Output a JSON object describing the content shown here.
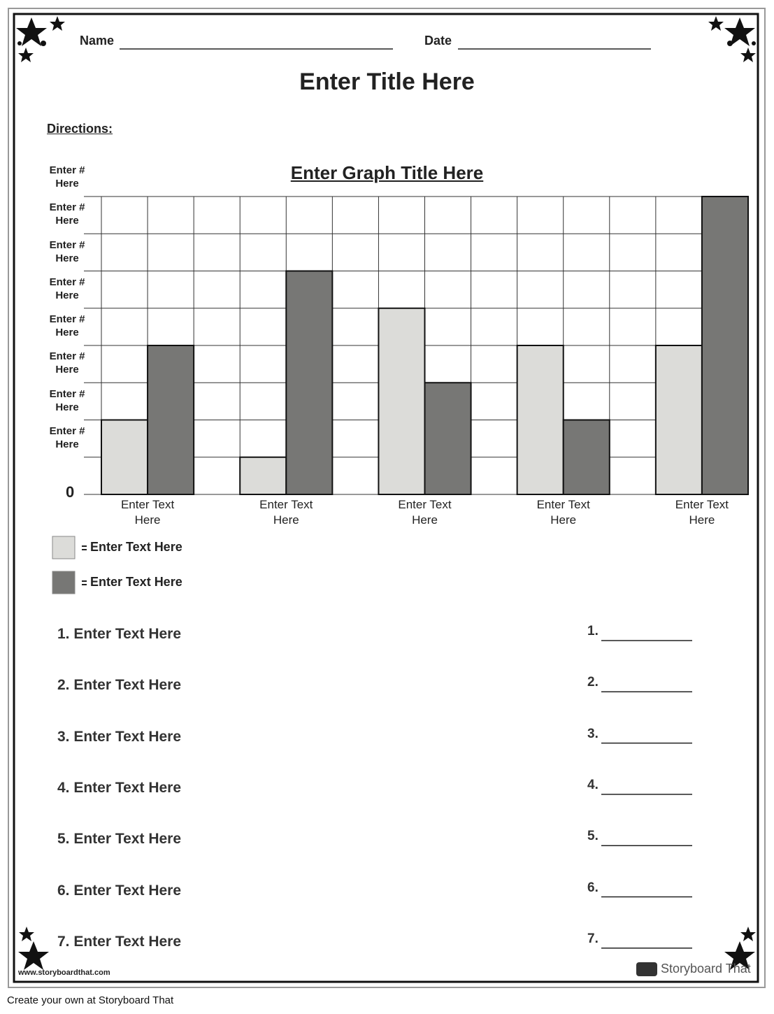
{
  "header": {
    "name_label": "Name",
    "date_label": "Date"
  },
  "title": "Enter Title Here",
  "directions": "Directions:",
  "chart_data": {
    "type": "bar",
    "title": "Enter Graph Title Here",
    "categories": [
      "Enter Text Here",
      "Enter Text Here",
      "Enter Text Here",
      "Enter Text Here",
      "Enter Text Here"
    ],
    "series": [
      {
        "name": "Enter Text Here",
        "color": "#dcdcd9",
        "values": [
          2,
          1,
          5,
          4,
          4
        ]
      },
      {
        "name": "Enter Text Here",
        "color": "#777775",
        "values": [
          4,
          6,
          3,
          2,
          8
        ]
      }
    ],
    "ylim": [
      0,
      8
    ],
    "yticks": [
      0,
      {
        "value": 1,
        "label": "Enter # Here"
      },
      {
        "value": 2,
        "label": "Enter # Here"
      },
      {
        "value": 3,
        "label": "Enter # Here"
      },
      {
        "value": 4,
        "label": "Enter # Here"
      },
      {
        "value": 5,
        "label": "Enter # Here"
      },
      {
        "value": 6,
        "label": "Enter # Here"
      },
      {
        "value": 7,
        "label": "Enter # Here"
      },
      {
        "value": 8,
        "label": "Enter # Here"
      }
    ],
    "grid": true
  },
  "questions": [
    "1. Enter Text Here",
    "2. Enter Text Here",
    "3. Enter Text Here",
    "4. Enter Text Here",
    "5. Enter Text Here",
    "6. Enter Text Here",
    "7. Enter Text Here"
  ],
  "answers": [
    "1.",
    "2.",
    "3.",
    "4.",
    "5.",
    "6.",
    "7."
  ],
  "footer": {
    "site": "www.storyboardthat.com",
    "logo": "Storyboard That",
    "caption": "Create your own at Storyboard That"
  }
}
